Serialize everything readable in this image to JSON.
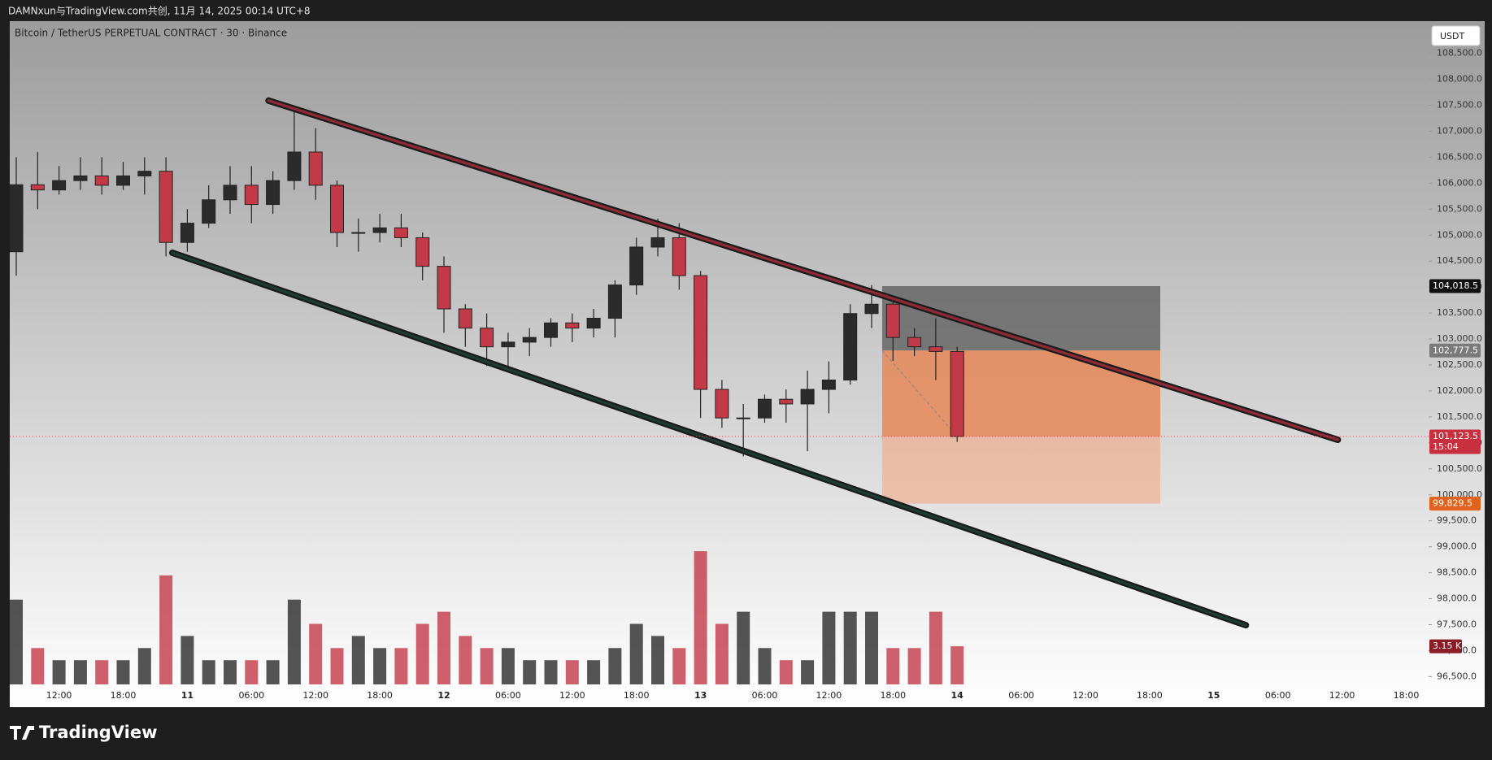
{
  "header": {
    "caption": "DAMNxun与TradingView.com共创, 11月 14, 2025 00:14 UTC+8"
  },
  "chart_data": {
    "type": "candlestick",
    "title": "Bitcoin / TetherUS PERPETUAL CONTRACT · 30 · Binance",
    "currency": "USDT",
    "categories": [
      null,
      null,
      "12:00",
      null,
      null,
      "18:00",
      null,
      null,
      "11",
      null,
      null,
      "06:00",
      null,
      null,
      "12:00",
      null,
      null,
      "18:00",
      null,
      null,
      "12",
      null,
      null,
      "06:00",
      null,
      null,
      "12:00",
      null,
      null,
      "18:00",
      null,
      null,
      "13",
      null,
      null,
      "06:00",
      null,
      null,
      "12:00",
      null,
      null,
      "18:00",
      null,
      null,
      "14",
      null,
      null,
      "06:00",
      null,
      null,
      "12:00",
      null,
      null,
      "18:00",
      null,
      null,
      "15",
      null,
      null,
      "06:00",
      null,
      null,
      "12:00",
      null,
      null,
      "18:00"
    ],
    "open": [
      104680,
      105970,
      105870,
      106050,
      106140,
      105960,
      106140,
      106230,
      104860,
      105230,
      105680,
      105960,
      105590,
      106050,
      106600,
      105960,
      105050,
      105050,
      105140,
      104950,
      104400,
      103580,
      103210,
      102850,
      102940,
      103030,
      103310,
      103210,
      103400,
      104040,
      104770,
      104950,
      104220,
      102030,
      101480,
      101480,
      101840,
      101750,
      102030,
      102210,
      103490,
      103670,
      103030,
      102850,
      102760,
      null,
      null,
      null,
      null,
      null,
      null,
      null,
      null,
      null,
      null,
      null,
      null,
      null,
      null,
      null,
      null,
      null,
      null,
      null,
      null,
      null
    ],
    "high": [
      106500,
      106600,
      106330,
      106500,
      106500,
      106410,
      106500,
      106500,
      105500,
      105960,
      106330,
      106330,
      106230,
      107420,
      107060,
      106050,
      105320,
      105410,
      105410,
      105050,
      104590,
      103670,
      103490,
      103120,
      103210,
      103400,
      103490,
      103580,
      104130,
      104950,
      105320,
      105230,
      104310,
      102210,
      101750,
      101930,
      102030,
      102390,
      102570,
      103670,
      104040,
      103760,
      103210,
      103400,
      102850,
      null,
      null,
      null,
      null,
      null,
      null,
      null,
      null,
      null,
      null,
      null,
      null,
      null,
      null,
      null,
      null,
      null,
      null,
      null,
      null,
      null
    ],
    "low": [
      104220,
      105500,
      105780,
      105870,
      105780,
      105870,
      105780,
      104590,
      104680,
      105140,
      105410,
      105230,
      105410,
      105870,
      105680,
      104770,
      104680,
      104860,
      104770,
      104130,
      103120,
      102850,
      102480,
      102390,
      102670,
      102850,
      102940,
      103030,
      103030,
      103850,
      104590,
      103950,
      101480,
      101290,
      100740,
      101390,
      101390,
      100840,
      101570,
      102120,
      103210,
      102580,
      102670,
      102210,
      101020,
      null,
      null,
      null,
      null,
      null,
      null,
      null,
      null,
      null,
      null,
      null,
      null,
      null,
      null,
      null,
      null,
      null,
      null,
      null,
      null,
      null
    ],
    "close": [
      105970,
      105870,
      106050,
      106140,
      105960,
      106140,
      106230,
      104860,
      105230,
      105680,
      105960,
      105590,
      106050,
      106600,
      105960,
      105050,
      105050,
      105140,
      104950,
      104400,
      103580,
      103210,
      102850,
      102940,
      103030,
      103310,
      103210,
      103400,
      104040,
      104770,
      104950,
      104220,
      102030,
      101480,
      101480,
      101840,
      101750,
      102030,
      102210,
      103490,
      103670,
      103030,
      102850,
      102760,
      101123.5,
      null,
      null,
      null,
      null,
      null,
      null,
      null,
      null,
      null,
      null,
      null,
      null,
      null,
      null,
      null,
      null,
      null,
      null,
      null,
      null,
      null
    ],
    "volume": {
      "values": [
        7,
        3,
        2,
        2,
        2,
        2,
        3,
        9,
        4,
        2,
        2,
        2,
        2,
        7,
        5,
        3,
        4,
        3,
        3,
        5,
        6,
        4,
        3,
        3,
        2,
        2,
        2,
        2,
        3,
        5,
        4,
        3,
        11,
        5,
        6,
        3,
        2,
        2,
        6,
        6,
        6,
        3,
        3,
        6,
        3.15,
        null,
        null,
        null,
        null,
        null,
        null,
        null,
        null,
        null,
        null,
        null,
        null,
        null,
        null,
        null,
        null,
        null,
        null,
        null,
        null,
        null
      ],
      "value_labels": [
        null,
        null,
        null,
        null,
        null,
        null,
        null,
        null,
        null,
        null,
        null,
        null,
        null,
        null,
        null,
        null,
        null,
        null,
        null,
        null,
        null,
        null,
        null,
        null,
        null,
        null,
        null,
        null,
        null,
        null,
        null,
        null,
        null,
        null,
        null,
        null,
        null,
        null,
        null,
        null,
        null,
        null,
        null,
        null,
        "3.15 K",
        null,
        null,
        null,
        null,
        null,
        null,
        null,
        null,
        null,
        null,
        null,
        null,
        null,
        null,
        null,
        null,
        null,
        null,
        null,
        null,
        null
      ]
    },
    "up_color": "#2b2b2b",
    "down_color": "#c23a48",
    "ylim": [
      96350,
      109120
    ],
    "yticks": [
      {
        "value": 96500,
        "label": "96,500.0"
      },
      {
        "value": 97000,
        "label": "97,000.0"
      },
      {
        "value": 97500,
        "label": "97,500.0"
      },
      {
        "value": 98000,
        "label": "98,000.0"
      },
      {
        "value": 98500,
        "label": "98,500.0"
      },
      {
        "value": 99000,
        "label": "99,000.0"
      },
      {
        "value": 99500,
        "label": "99,500.0"
      },
      {
        "value": 100000,
        "label": "100,000.0"
      },
      {
        "value": 100500,
        "label": "100,500.0"
      },
      {
        "value": 101000,
        "label": "101,000.0"
      },
      {
        "value": 101500,
        "label": "101,500.0"
      },
      {
        "value": 102000,
        "label": "102,000.0"
      },
      {
        "value": 102500,
        "label": "102,500.0"
      },
      {
        "value": 103000,
        "label": "103,000.0"
      },
      {
        "value": 103500,
        "label": "103,500.0"
      },
      {
        "value": 104000,
        "label": "104,000.0"
      },
      {
        "value": 104500,
        "label": "104,500.0"
      },
      {
        "value": 105000,
        "label": "105,000.0"
      },
      {
        "value": 105500,
        "label": "105,500.0"
      },
      {
        "value": 106000,
        "label": "106,000.0"
      },
      {
        "value": 106500,
        "label": "106,500.0"
      },
      {
        "value": 107000,
        "label": "107,000.0"
      },
      {
        "value": 107500,
        "label": "107,500.0"
      },
      {
        "value": 108000,
        "label": "108,000.0"
      },
      {
        "value": 108500,
        "label": "108,500.0"
      }
    ],
    "last_price": {
      "value": 101123.5,
      "label": "101,123.5"
    },
    "countdown": "15:04",
    "position": {
      "stop": {
        "value": 104018.5,
        "label": "104,018.5"
      },
      "entry": {
        "value": 102777.5,
        "label": "102,777.5"
      },
      "target": {
        "value": 99829.5,
        "label": "99,829.5"
      }
    },
    "trendlines": [
      {
        "color": "#8a2a36",
        "points": [
          [
            11.8,
            107590
          ],
          [
            61.8,
            101060
          ]
        ]
      },
      {
        "color": "#1f3a30",
        "points": [
          [
            7.3,
            104660
          ],
          [
            57.5,
            97490
          ]
        ]
      }
    ]
  },
  "footer": {
    "brand": "TradingView"
  }
}
